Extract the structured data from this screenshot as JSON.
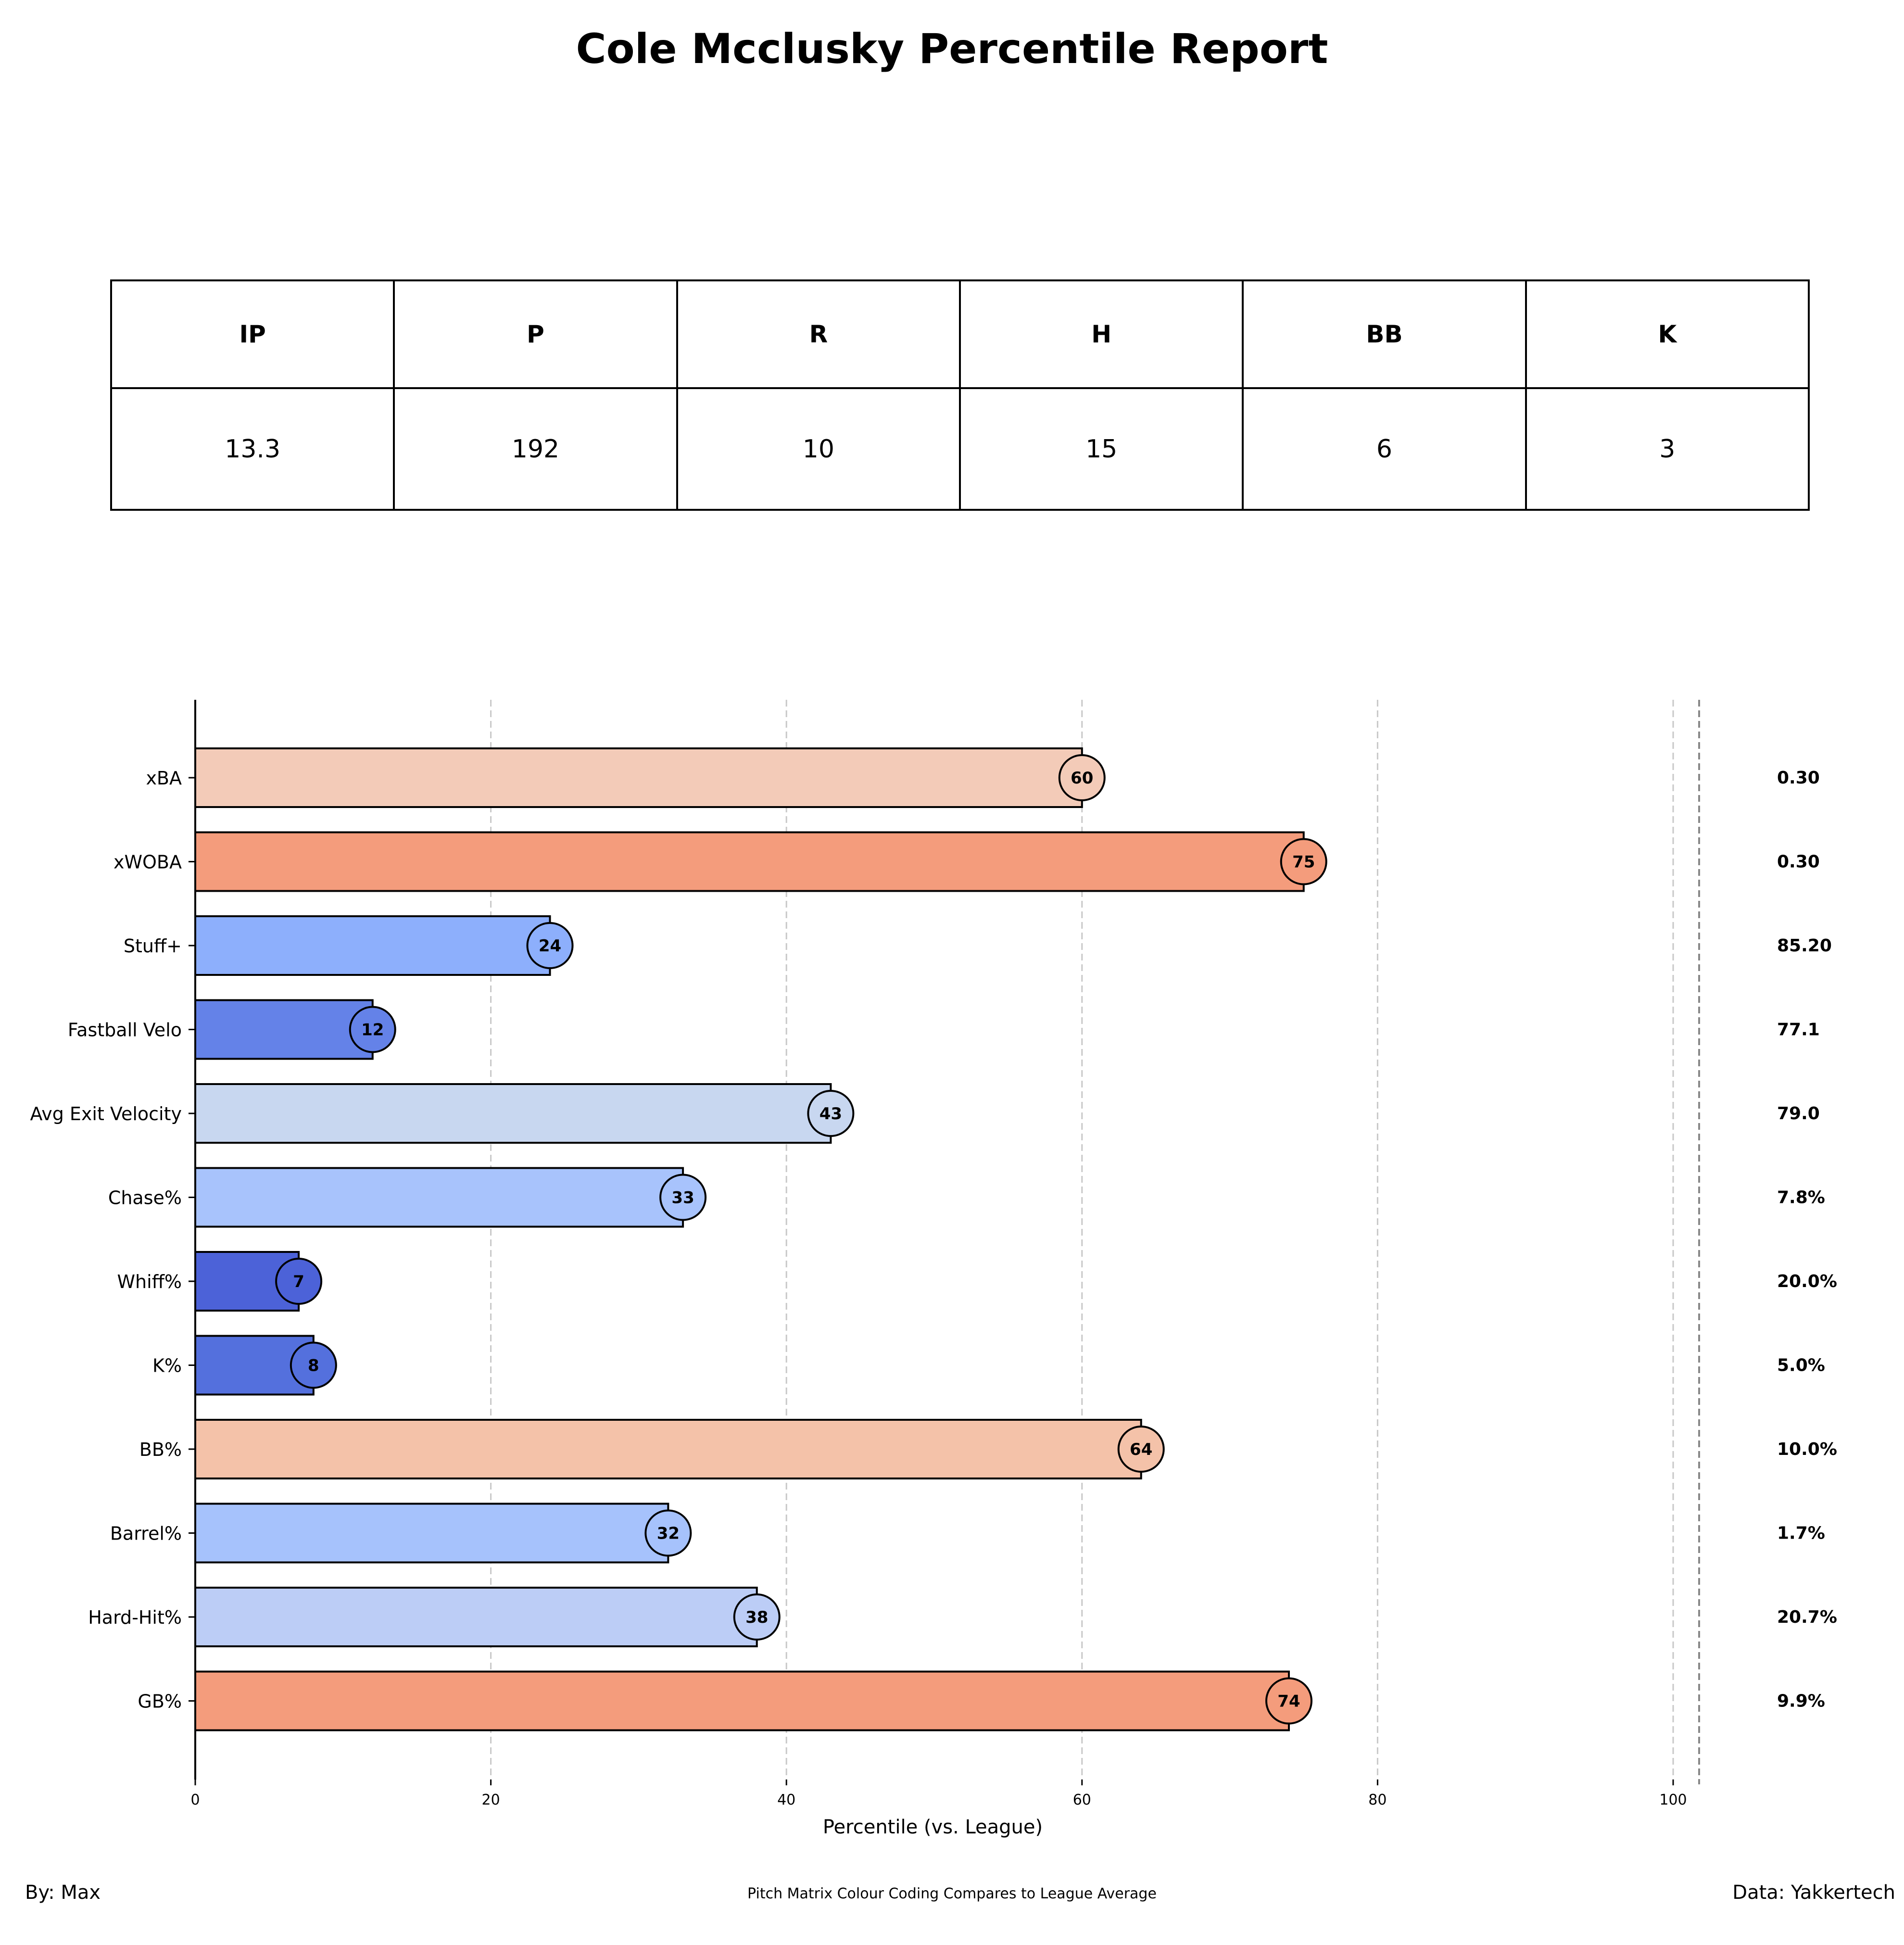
{
  "title": "Cole Mcclusky Percentile Report",
  "stats_table": {
    "headers": [
      "IP",
      "P",
      "R",
      "H",
      "BB",
      "K"
    ],
    "values": [
      "13.3",
      "192",
      "10",
      "15",
      "6",
      "3"
    ]
  },
  "chart_data": {
    "type": "bar",
    "orientation": "horizontal",
    "categories": [
      "xBA",
      "xWOBA",
      "Stuff+",
      "Fastball Velo",
      "Avg Exit Velocity",
      "Chase%",
      "Whiff%",
      "K%",
      "BB%",
      "Barrel%",
      "Hard-Hit%",
      "GB%"
    ],
    "values": [
      60,
      75,
      24,
      12,
      43,
      33,
      7,
      8,
      64,
      32,
      38,
      74
    ],
    "stat_values": [
      "0.30",
      "0.30",
      "85.20",
      "77.1",
      "79.0",
      "7.8%",
      "20.0%",
      "5.0%",
      "10.0%",
      "1.7%",
      "20.7%",
      "9.9%"
    ],
    "bar_colors": [
      "#f3cbb8",
      "#f49c7c",
      "#8daffc",
      "#6482e8",
      "#c8d7f0",
      "#a8c3fc",
      "#4c62d8",
      "#5470dd",
      "#f4c2a9",
      "#a6c2fc",
      "#bccdf6",
      "#f49c7c"
    ],
    "xlabel": "Percentile (vs. League)",
    "ylabel": "",
    "xlim": [
      0,
      102
    ],
    "xticks": [
      0,
      20,
      40,
      60,
      80,
      100
    ],
    "grid": "vertical-dashed"
  },
  "footer": {
    "left": "By: Max",
    "center": "Pitch Matrix Colour Coding Compares to League Average",
    "right": "Data: Yakkertech"
  }
}
